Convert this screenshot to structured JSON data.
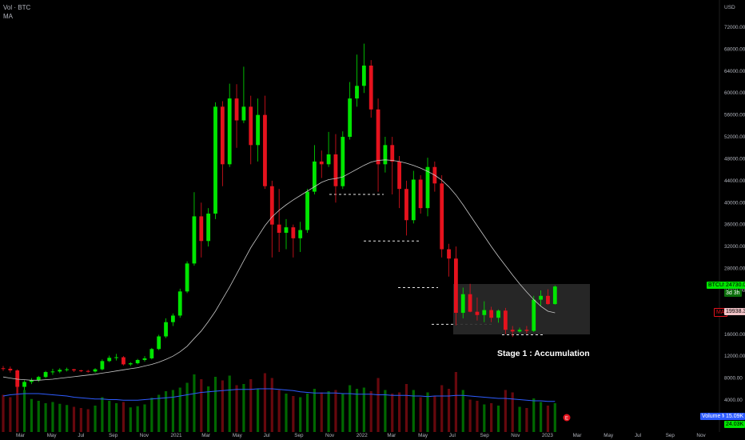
{
  "legend": {
    "line1": "Vol · BTC",
    "line2": "MA"
  },
  "axis": {
    "unit_label": "USD"
  },
  "annotation": {
    "stage_label": "Stage 1 : Accumulation"
  },
  "tags": {
    "price_symbol": "BTCUSD",
    "price_value": "24730.00",
    "price_sub": "3d 3h",
    "ma_label": "MA",
    "ma_value": "19938.37",
    "vol_label": "Volume MA",
    "vol_value": "15.09K",
    "vol_sub": "24.03K"
  },
  "colors": {
    "up": "#00e600",
    "down": "#e5121d",
    "ma": "#c8c8c8",
    "vol_ma": "#2e5cff",
    "box": "#2a2a2a",
    "bg": "#000000",
    "axis_text": "#b2b5be"
  },
  "chart_data": {
    "type": "candlestick",
    "title": "",
    "y_axis": {
      "ticks": [
        4000,
        8000,
        12000,
        16000,
        20000,
        24000,
        28000,
        32000,
        36000,
        40000,
        44000,
        48000,
        52000,
        56000,
        60000,
        64000,
        68000,
        72000
      ]
    },
    "x_axis": {
      "ticks": [
        "Mar",
        "May",
        "Jul",
        "Sep",
        "Nov",
        "2021",
        "Mar",
        "May",
        "Jul",
        "Sep",
        "Nov",
        "2022",
        "Mar",
        "May",
        "Jul",
        "Sep",
        "Nov",
        "2023",
        "Mar",
        "May",
        "Jul",
        "Sep",
        "Nov"
      ]
    },
    "series": [
      {
        "name": "BTCUSD",
        "kind": "candlestick",
        "ohlc": [
          [
            9800,
            10200,
            9300,
            9700
          ],
          [
            9700,
            10100,
            9000,
            9400
          ],
          [
            9400,
            9600,
            5200,
            6400
          ],
          [
            6400,
            7600,
            5800,
            7300
          ],
          [
            7300,
            8000,
            6900,
            7600
          ],
          [
            7600,
            8400,
            7300,
            8200
          ],
          [
            8200,
            9300,
            8000,
            9100
          ],
          [
            9100,
            9700,
            8600,
            9200
          ],
          [
            9200,
            9800,
            8900,
            9500
          ],
          [
            9500,
            9900,
            9200,
            9600
          ],
          [
            9600,
            9700,
            9100,
            9400
          ],
          [
            9400,
            9500,
            9100,
            9300
          ],
          [
            9300,
            9500,
            9000,
            9200
          ],
          [
            9200,
            9800,
            9000,
            9600
          ],
          [
            9600,
            11400,
            9400,
            11100
          ],
          [
            11100,
            12100,
            10900,
            11700
          ],
          [
            11700,
            12400,
            11200,
            11800
          ],
          [
            11800,
            12000,
            10300,
            10500
          ],
          [
            10500,
            10900,
            10200,
            10700
          ],
          [
            10700,
            11500,
            10500,
            11300
          ],
          [
            11300,
            12000,
            11000,
            11600
          ],
          [
            11600,
            13500,
            11400,
            13300
          ],
          [
            13300,
            15900,
            13100,
            15600
          ],
          [
            15600,
            18900,
            15300,
            18200
          ],
          [
            18200,
            19800,
            17500,
            19400
          ],
          [
            19400,
            24300,
            19000,
            23800
          ],
          [
            23800,
            29300,
            23500,
            28900
          ],
          [
            28900,
            41900,
            28500,
            37500
          ],
          [
            37500,
            40000,
            30000,
            33000
          ],
          [
            33000,
            39000,
            32000,
            38000
          ],
          [
            38000,
            58300,
            37000,
            57500
          ],
          [
            57500,
            58500,
            43000,
            47000
          ],
          [
            47000,
            61700,
            46500,
            59000
          ],
          [
            59000,
            61600,
            50000,
            55000
          ],
          [
            55000,
            64800,
            54500,
            57500
          ],
          [
            57500,
            59500,
            47000,
            50500
          ],
          [
            50500,
            59000,
            47500,
            56000
          ],
          [
            56000,
            59500,
            42500,
            43000
          ],
          [
            43000,
            44000,
            30000,
            36000
          ],
          [
            36000,
            42500,
            31000,
            34500
          ],
          [
            34500,
            37000,
            31500,
            35500
          ],
          [
            35500,
            36000,
            30000,
            33500
          ],
          [
            33500,
            36500,
            31000,
            35000
          ],
          [
            35000,
            42500,
            34500,
            42000
          ],
          [
            42000,
            50500,
            41500,
            47500
          ],
          [
            47500,
            49500,
            44500,
            47000
          ],
          [
            47000,
            52900,
            46500,
            48800
          ],
          [
            48800,
            52500,
            40000,
            43000
          ],
          [
            43000,
            53000,
            42500,
            52000
          ],
          [
            52000,
            62000,
            51500,
            59000
          ],
          [
            59000,
            67000,
            57500,
            61300
          ],
          [
            61300,
            69000,
            60000,
            65000
          ],
          [
            65000,
            66000,
            55500,
            57000
          ],
          [
            57000,
            59000,
            42000,
            47000
          ],
          [
            47000,
            52000,
            45500,
            50500
          ],
          [
            50500,
            52000,
            41500,
            47500
          ],
          [
            47500,
            48500,
            39000,
            42500
          ],
          [
            42500,
            44000,
            34000,
            36800
          ],
          [
            36800,
            45800,
            36200,
            44200
          ],
          [
            44200,
            45000,
            38000,
            39000
          ],
          [
            39000,
            48200,
            37500,
            46500
          ],
          [
            46500,
            47500,
            42000,
            43500
          ],
          [
            43500,
            45000,
            30000,
            31500
          ],
          [
            31500,
            32500,
            26500,
            29800
          ],
          [
            29800,
            32000,
            17600,
            19900
          ],
          [
            19900,
            24500,
            18900,
            23300
          ],
          [
            23300,
            25200,
            20000,
            20100
          ],
          [
            20100,
            22700,
            18500,
            19500
          ],
          [
            19500,
            22000,
            18200,
            20400
          ],
          [
            20400,
            21000,
            18200,
            19000
          ],
          [
            19000,
            20500,
            18100,
            20300
          ],
          [
            20300,
            20800,
            16000,
            16800
          ],
          [
            16800,
            17500,
            15500,
            16500
          ],
          [
            16500,
            17200,
            16300,
            16800
          ],
          [
            16800,
            17500,
            16100,
            16600
          ],
          [
            16600,
            23000,
            16400,
            22300
          ],
          [
            22300,
            24000,
            21200,
            23000
          ],
          [
            23000,
            24200,
            21400,
            21500
          ],
          [
            21500,
            24900,
            21400,
            24700
          ]
        ]
      },
      {
        "name": "MA",
        "kind": "line",
        "values": [
          8200,
          8000,
          7800,
          7700,
          7600,
          7600,
          7700,
          7800,
          7950,
          8100,
          8250,
          8400,
          8550,
          8700,
          8900,
          9100,
          9300,
          9500,
          9700,
          9900,
          10200,
          10500,
          10900,
          11400,
          12000,
          12800,
          13800,
          15200,
          16600,
          18300,
          20200,
          22400,
          24600,
          27000,
          29400,
          31800,
          33800,
          35800,
          37400,
          38600,
          39600,
          40500,
          41300,
          42100,
          42900,
          43700,
          44200,
          44400,
          44700,
          45400,
          46100,
          46800,
          47400,
          47700,
          47800,
          47700,
          47500,
          47200,
          46800,
          46300,
          45700,
          45000,
          44100,
          42900,
          41400,
          39600,
          37700,
          35800,
          33900,
          32000,
          30200,
          28500,
          26800,
          25200,
          23700,
          22300,
          21100,
          20200,
          19900
        ]
      },
      {
        "name": "Volume",
        "kind": "histogram",
        "values": [
          62,
          58,
          95,
          70,
          55,
          52,
          48,
          50,
          47,
          45,
          42,
          40,
          38,
          44,
          58,
          52,
          48,
          50,
          41,
          43,
          46,
          57,
          62,
          68,
          70,
          74,
          82,
          96,
          88,
          76,
          92,
          86,
          94,
          78,
          80,
          88,
          72,
          98,
          90,
          70,
          64,
          60,
          58,
          64,
          72,
          66,
          68,
          70,
          64,
          78,
          72,
          74,
          68,
          90,
          70,
          64,
          66,
          80,
          70,
          58,
          66,
          60,
          78,
          72,
          100,
          70,
          54,
          52,
          46,
          48,
          44,
          70,
          66,
          42,
          40,
          56,
          50,
          44,
          48
        ]
      },
      {
        "name": "Volume MA",
        "kind": "line",
        "values": [
          60,
          62,
          63,
          64,
          64,
          64,
          63,
          62,
          61,
          60,
          58,
          57,
          56,
          55,
          55,
          54,
          54,
          53,
          53,
          53,
          54,
          55,
          56,
          57,
          58,
          60,
          62,
          64,
          66,
          67,
          68,
          69,
          70,
          71,
          71,
          71,
          72,
          72,
          72,
          71,
          70,
          69,
          67,
          66,
          65,
          65,
          65,
          65,
          64,
          64,
          63,
          63,
          63,
          62,
          62,
          61,
          61,
          61,
          60,
          60,
          59,
          60,
          60,
          60,
          61,
          61,
          60,
          59,
          58,
          57,
          56,
          56,
          55,
          54,
          53,
          52,
          52,
          51,
          51
        ]
      }
    ]
  }
}
